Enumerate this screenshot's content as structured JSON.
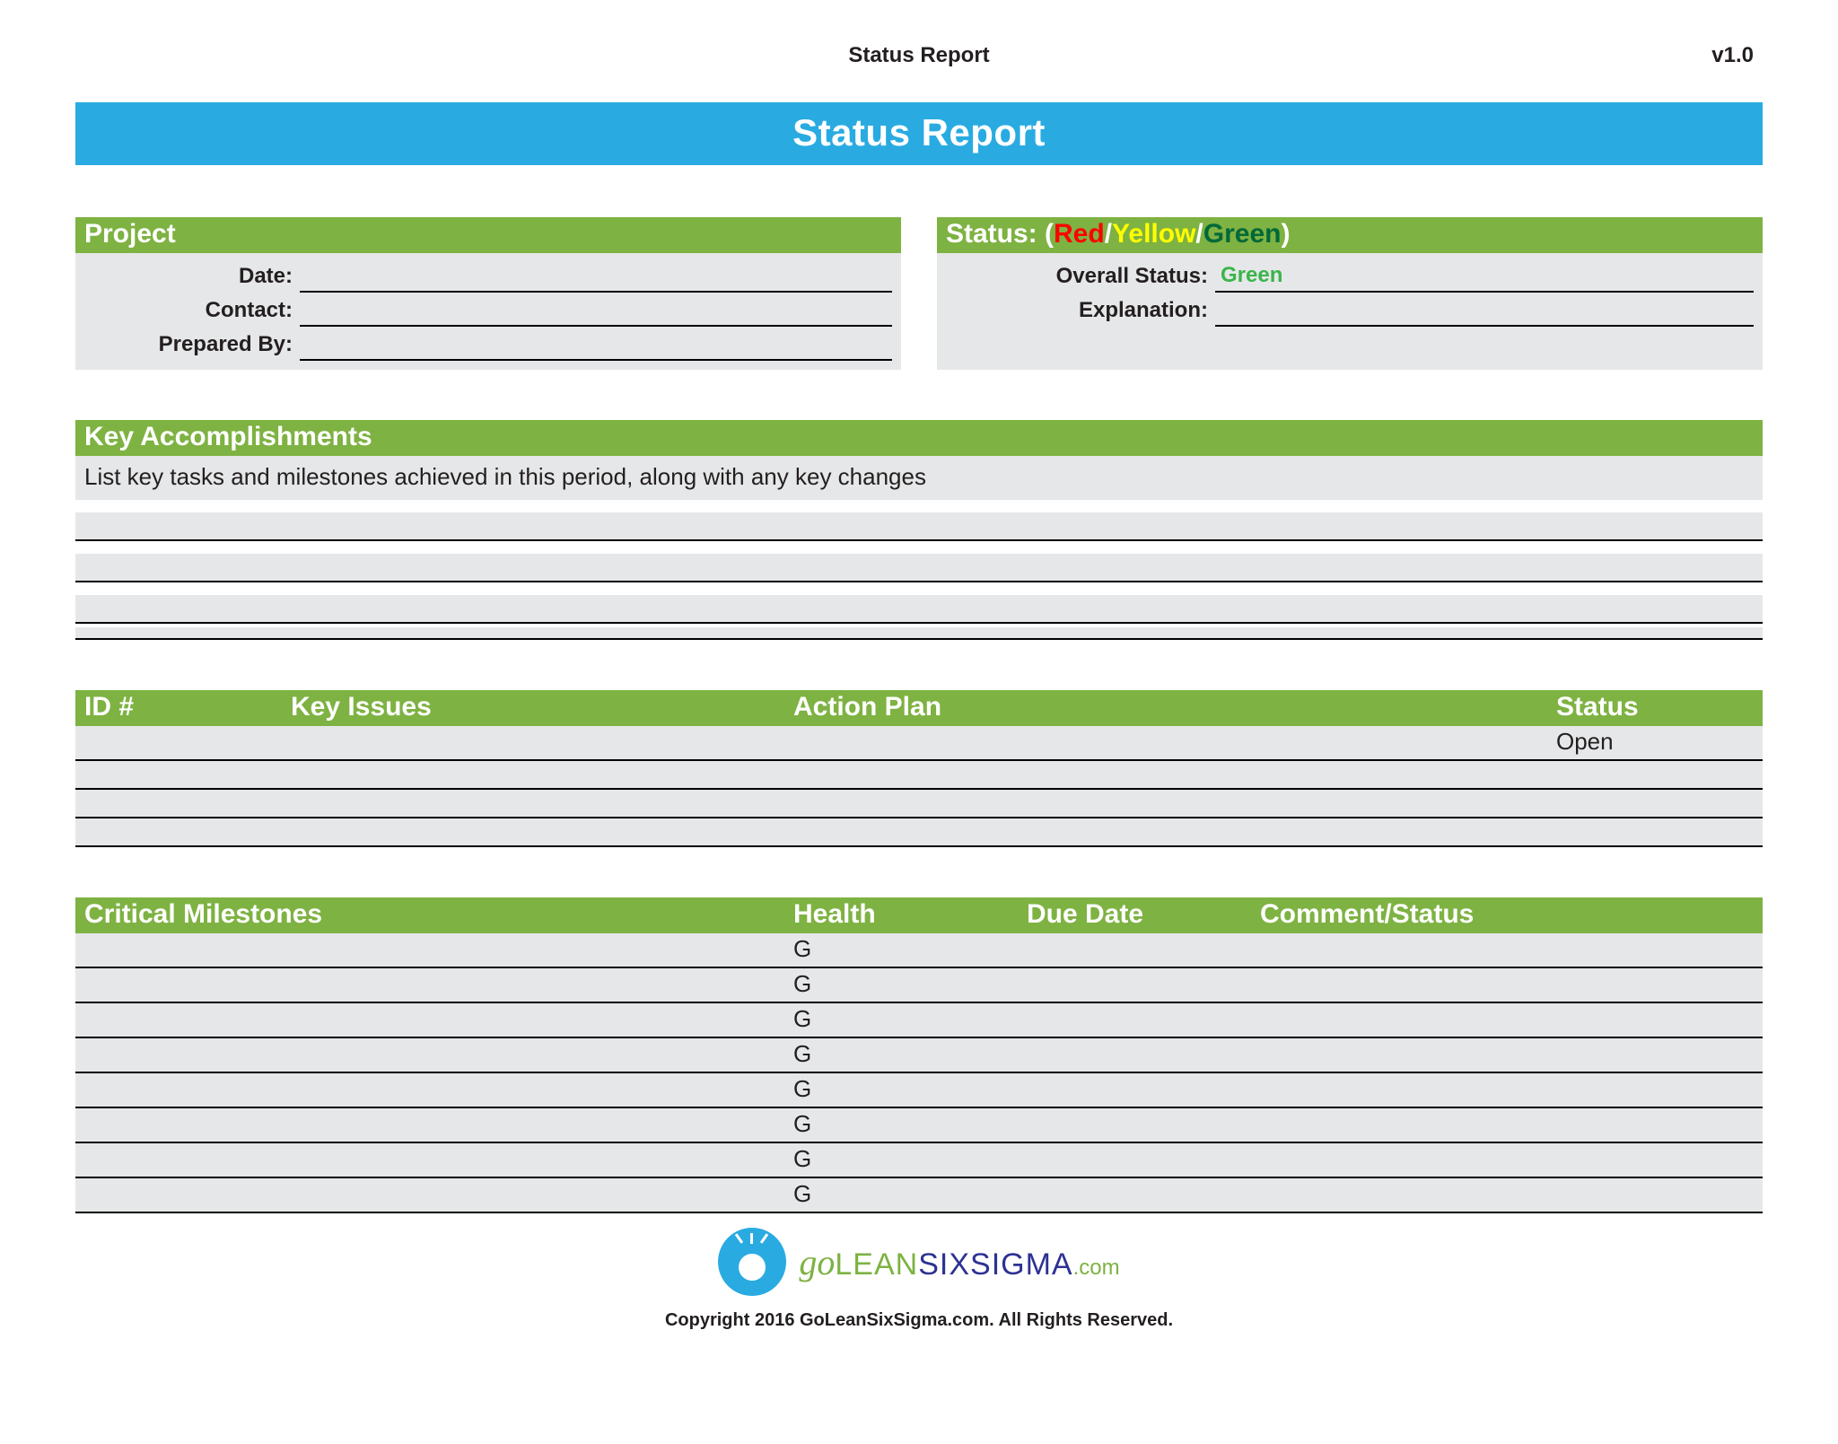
{
  "header": {
    "title": "Status Report",
    "version": "v1.0"
  },
  "title_bar": "Status Report",
  "project": {
    "heading": "Project",
    "fields": {
      "date_label": "Date:",
      "date_value": "",
      "contact_label": "Contact:",
      "contact_value": "",
      "prep_label": "Prepared By:",
      "prep_value": ""
    }
  },
  "status": {
    "prefix": "Status: (",
    "red": "Red",
    "sep1": "/",
    "yellow": "Yellow",
    "sep2": "/",
    "green": "Green",
    "suffix": ")",
    "overall_label": "Overall Status:",
    "overall_value": "Green",
    "explain_label": "Explanation:",
    "explain_value": ""
  },
  "accomplishments": {
    "heading": "Key Accomplishments",
    "description": "List key tasks and milestones achieved in this period, along with any key changes"
  },
  "issues": {
    "cols": {
      "id": "ID #",
      "issue": "Key Issues",
      "action": "Action Plan",
      "status": "Status"
    },
    "rows": [
      {
        "id": "",
        "issue": "",
        "action": "",
        "status": "Open"
      },
      {
        "id": "",
        "issue": "",
        "action": "",
        "status": ""
      },
      {
        "id": "",
        "issue": "",
        "action": "",
        "status": ""
      },
      {
        "id": "",
        "issue": "",
        "action": "",
        "status": ""
      }
    ]
  },
  "milestones": {
    "cols": {
      "name": "Critical Milestones",
      "health": "Health",
      "due": "Due Date",
      "comment": "Comment/Status"
    },
    "rows": [
      {
        "name": "",
        "health": "G",
        "due": "",
        "comment": ""
      },
      {
        "name": "",
        "health": "G",
        "due": "",
        "comment": ""
      },
      {
        "name": "",
        "health": "G",
        "due": "",
        "comment": ""
      },
      {
        "name": "",
        "health": "G",
        "due": "",
        "comment": ""
      },
      {
        "name": "",
        "health": "G",
        "due": "",
        "comment": ""
      },
      {
        "name": "",
        "health": "G",
        "due": "",
        "comment": ""
      },
      {
        "name": "",
        "health": "G",
        "due": "",
        "comment": ""
      },
      {
        "name": "",
        "health": "G",
        "due": "",
        "comment": ""
      }
    ]
  },
  "footer": {
    "logo_go": "go",
    "logo_lean": "LEAN",
    "logo_six": "SIXSIGMA",
    "logo_com": ".com",
    "copyright": "Copyright 2016 GoLeanSixSigma.com. All Rights Reserved."
  },
  "colors": {
    "blue": "#29abe2",
    "green": "#7eb242",
    "grey": "#e6e7e8",
    "rule": "#000000",
    "status_red": "#ff0000",
    "status_yellow": "#ffff00",
    "status_darkgreen": "#006838",
    "value_green": "#39b54a"
  }
}
